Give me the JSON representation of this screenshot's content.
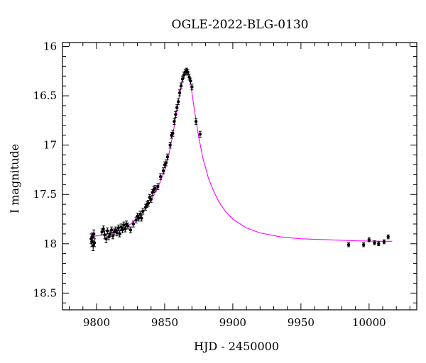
{
  "chart_data": {
    "type": "scatter",
    "title": "OGLE-2022-BLG-0130",
    "xlabel": "HJD - 2450000",
    "ylabel": "I magnitude",
    "xlim": [
      9775,
      10035
    ],
    "ylim": [
      18.67,
      15.96
    ],
    "y_inverted": true,
    "xticks": [
      9800,
      9850,
      9900,
      9950,
      10000
    ],
    "yticks": [
      16,
      16.5,
      17,
      17.5,
      18,
      18.5
    ],
    "grid": false,
    "colors": {
      "data": "#000000",
      "model": "#ff00ff",
      "frame": "#000000"
    },
    "series": [
      {
        "kind": "data",
        "points": [
          [
            9796,
            17.95,
            0.05
          ],
          [
            9796.5,
            17.98,
            0.05
          ],
          [
            9797,
            17.93,
            0.04
          ],
          [
            9797.5,
            18.02,
            0.05
          ],
          [
            9798,
            17.9,
            0.04
          ],
          [
            9798.5,
            17.99,
            0.04
          ],
          [
            9804,
            17.88,
            0.03
          ],
          [
            9805,
            17.85,
            0.03
          ],
          [
            9806,
            17.91,
            0.04
          ],
          [
            9807,
            17.95,
            0.04
          ],
          [
            9808,
            17.87,
            0.03
          ],
          [
            9809,
            17.93,
            0.03
          ],
          [
            9810,
            17.9,
            0.03
          ],
          [
            9811,
            17.86,
            0.03
          ],
          [
            9812,
            17.92,
            0.03
          ],
          [
            9813,
            17.88,
            0.03
          ],
          [
            9814,
            17.86,
            0.03
          ],
          [
            9815,
            17.89,
            0.03
          ],
          [
            9816,
            17.84,
            0.03
          ],
          [
            9817,
            17.9,
            0.03
          ],
          [
            9818,
            17.83,
            0.03
          ],
          [
            9819,
            17.86,
            0.03
          ],
          [
            9820,
            17.81,
            0.03
          ],
          [
            9821,
            17.85,
            0.03
          ],
          [
            9822,
            17.8,
            0.03
          ],
          [
            9823,
            17.82,
            0.03
          ],
          [
            9825,
            17.86,
            0.03
          ],
          [
            9827,
            17.8,
            0.03
          ],
          [
            9829,
            17.76,
            0.03
          ],
          [
            9830,
            17.72,
            0.03
          ],
          [
            9831,
            17.74,
            0.03
          ],
          [
            9832,
            17.7,
            0.03
          ],
          [
            9833,
            17.74,
            0.03
          ],
          [
            9834,
            17.67,
            0.03
          ],
          [
            9836,
            17.63,
            0.03
          ],
          [
            9837,
            17.6,
            0.03
          ],
          [
            9838,
            17.59,
            0.03
          ],
          [
            9839,
            17.53,
            0.03
          ],
          [
            9840,
            17.55,
            0.03
          ],
          [
            9841,
            17.48,
            0.03
          ],
          [
            9842,
            17.45,
            0.03
          ],
          [
            9843,
            17.44,
            0.03
          ],
          [
            9845,
            17.42,
            0.03
          ],
          [
            9847,
            17.32,
            0.03
          ],
          [
            9849,
            17.26,
            0.03
          ],
          [
            9850,
            17.2,
            0.03
          ],
          [
            9851,
            17.18,
            0.03
          ],
          [
            9852,
            17.12,
            0.03
          ],
          [
            9854,
            17.0,
            0.03
          ],
          [
            9855,
            16.9,
            0.03
          ],
          [
            9856,
            16.88,
            0.03
          ],
          [
            9857,
            16.76,
            0.03
          ],
          [
            9858,
            16.69,
            0.03
          ],
          [
            9859,
            16.62,
            0.03
          ],
          [
            9860,
            16.56,
            0.03
          ],
          [
            9861,
            16.47,
            0.03
          ],
          [
            9862,
            16.4,
            0.03
          ],
          [
            9863,
            16.33,
            0.03
          ],
          [
            9864,
            16.29,
            0.03
          ],
          [
            9865,
            16.26,
            0.03
          ],
          [
            9866,
            16.25,
            0.03
          ],
          [
            9867,
            16.26,
            0.03
          ],
          [
            9868,
            16.31,
            0.03
          ],
          [
            9869,
            16.35,
            0.03
          ],
          [
            9870,
            16.41,
            0.03
          ],
          [
            9873,
            16.76,
            0.03
          ],
          [
            9876,
            16.89,
            0.03
          ],
          [
            9985,
            18.01,
            0.02
          ],
          [
            9996,
            18.01,
            0.02
          ],
          [
            10000,
            17.96,
            0.02
          ],
          [
            10004,
            17.99,
            0.02
          ],
          [
            10007,
            18.0,
            0.02
          ],
          [
            10011,
            17.98,
            0.02
          ],
          [
            10014,
            17.93,
            0.02
          ]
        ]
      },
      {
        "kind": "model",
        "x": [
          9796,
          9800,
          9805,
          9810,
          9815,
          9820,
          9825,
          9830,
          9835,
          9840,
          9845,
          9850,
          9853,
          9856,
          9859,
          9861,
          9863,
          9865,
          9866,
          9867,
          9868,
          9869,
          9870,
          9872,
          9875,
          9878,
          9882,
          9886,
          9890,
          9895,
          9900,
          9910,
          9920,
          9935,
          9950,
          9970,
          9990,
          10010,
          10017
        ],
        "y": [
          17.93,
          17.92,
          17.91,
          17.89,
          17.87,
          17.84,
          17.8,
          17.74,
          17.66,
          17.56,
          17.43,
          17.26,
          17.1,
          16.89,
          16.65,
          16.48,
          16.35,
          16.27,
          16.25,
          16.26,
          16.3,
          16.37,
          16.47,
          16.66,
          16.92,
          17.13,
          17.33,
          17.47,
          17.58,
          17.68,
          17.75,
          17.84,
          17.89,
          17.93,
          17.95,
          17.96,
          17.97,
          17.975,
          17.975
        ]
      }
    ]
  }
}
